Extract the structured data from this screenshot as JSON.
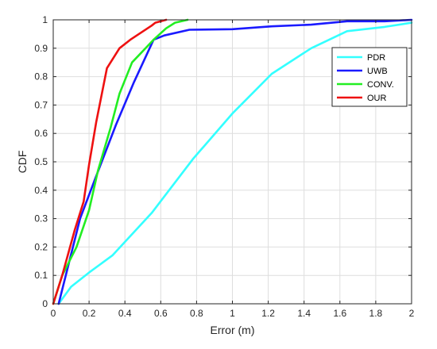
{
  "chart_data": {
    "type": "line",
    "title": "",
    "xlabel": "Error (m)",
    "ylabel": "CDF",
    "xlim": [
      0,
      2
    ],
    "ylim": [
      0,
      1
    ],
    "xticks": [
      0,
      0.2,
      0.4,
      0.6,
      0.8,
      1,
      1.2,
      1.4,
      1.6,
      1.8,
      2
    ],
    "yticks": [
      0,
      0.1,
      0.2,
      0.3,
      0.4,
      0.5,
      0.6,
      0.7,
      0.8,
      0.9,
      1
    ],
    "xtick_labels": [
      "0",
      "0.2",
      "0.4",
      "0.6",
      "0.8",
      "1",
      "1.2",
      "1.4",
      "1.6",
      "1.8",
      "2"
    ],
    "ytick_labels": [
      "0",
      "0.1",
      "0.2",
      "0.3",
      "0.4",
      "0.5",
      "0.6",
      "0.7",
      "0.8",
      "0.9",
      "1"
    ],
    "grid": true,
    "legend_position": "right",
    "series": [
      {
        "name": "PDR",
        "color": "#33ffff",
        "x": [
          0.03,
          0.1,
          0.2,
          0.33,
          0.55,
          0.78,
          1.0,
          1.22,
          1.44,
          1.64,
          1.85,
          2.0
        ],
        "y": [
          0.0,
          0.06,
          0.11,
          0.17,
          0.32,
          0.51,
          0.67,
          0.81,
          0.9,
          0.96,
          0.975,
          0.99
        ]
      },
      {
        "name": "UWB",
        "color": "#1a1aff",
        "x": [
          0.03,
          0.15,
          0.24,
          0.35,
          0.45,
          0.56,
          0.62,
          0.76,
          1.0,
          1.22,
          1.44,
          1.64,
          1.85,
          2.0
        ],
        "y": [
          0.0,
          0.3,
          0.45,
          0.63,
          0.78,
          0.93,
          0.945,
          0.965,
          0.967,
          0.977,
          0.983,
          0.995,
          0.995,
          1.0
        ]
      },
      {
        "name": "CONV.",
        "color": "#22ee22",
        "x": [
          0.0,
          0.05,
          0.13,
          0.2,
          0.25,
          0.32,
          0.37,
          0.44,
          0.56,
          0.63,
          0.68,
          0.75
        ],
        "y": [
          0.0,
          0.1,
          0.2,
          0.33,
          0.47,
          0.62,
          0.74,
          0.85,
          0.93,
          0.97,
          0.99,
          1.0
        ]
      },
      {
        "name": "OUR",
        "color": "#ee1111",
        "x": [
          0.0,
          0.05,
          0.12,
          0.17,
          0.2,
          0.24,
          0.3,
          0.37,
          0.43,
          0.55,
          0.57,
          0.63
        ],
        "y": [
          0.0,
          0.1,
          0.26,
          0.36,
          0.49,
          0.64,
          0.83,
          0.9,
          0.93,
          0.98,
          0.99,
          1.0
        ]
      }
    ]
  }
}
